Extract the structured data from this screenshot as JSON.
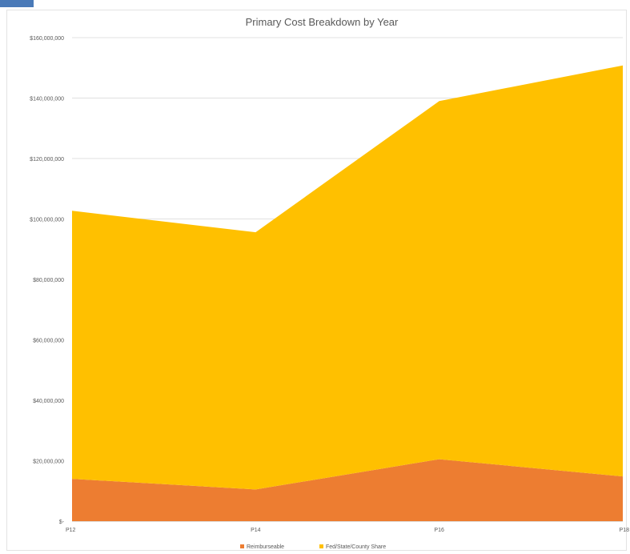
{
  "chart_data": {
    "type": "area",
    "stacked": true,
    "title": "Primary Cost Breakdown by Year",
    "xlabel": "",
    "ylabel": "",
    "categories": [
      "P12",
      "P14",
      "P16",
      "P18"
    ],
    "ylim": [
      0,
      160000000
    ],
    "yticks": [
      0,
      20000000,
      40000000,
      60000000,
      80000000,
      100000000,
      120000000,
      140000000,
      160000000
    ],
    "ytick_labels": [
      "$-",
      "$20,000,000",
      "$40,000,000",
      "$60,000,000",
      "$80,000,000",
      "$100,000,000",
      "$120,000,000",
      "$140,000,000",
      "$160,000,000"
    ],
    "grid": true,
    "legend_position": "bottom",
    "series": [
      {
        "name": "Reimburseable",
        "color": "#ED7D31",
        "values": [
          14000000,
          10500000,
          20500000,
          14800000
        ]
      },
      {
        "name": "Fed/State/County Share",
        "color": "#FFC000",
        "values": [
          88700000,
          85100000,
          118500000,
          136000000
        ]
      }
    ]
  }
}
